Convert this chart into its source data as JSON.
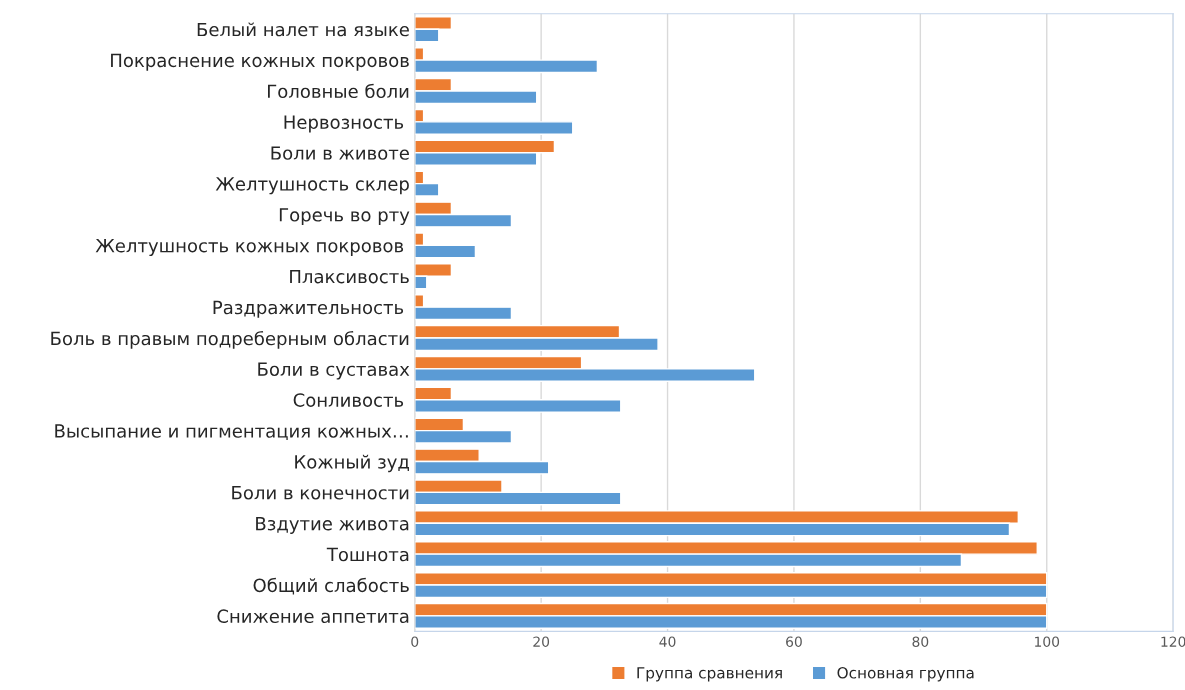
{
  "chart_data": {
    "type": "bar",
    "orientation": "horizontal",
    "categories": [
      "Белый налет на языке",
      "Покраснение кожных покровов",
      "Головные боли",
      "Нервозность ",
      "Боли в животе",
      "Желтушность склер",
      "Горечь во рту",
      "Желтушность кожных покровов ",
      "Плаксивость",
      "Раздражительность ",
      "Боль в правым подреберным области",
      "Боли в суставах",
      "Сонливость ",
      "Высыпание и пигментация кожных…",
      "Кожный зуд",
      "Боли в конечности",
      "Вздутие живота",
      "Тошнота",
      "Общий слабость",
      "Снижение аппетита"
    ],
    "series": [
      {
        "name": "Группа сравнения",
        "color": "#ed7d31",
        "values": [
          5.8,
          1.4,
          5.8,
          1.4,
          22.1,
          1.4,
          5.8,
          1.4,
          5.8,
          1.4,
          32.4,
          26.4,
          5.8,
          7.7,
          10.2,
          13.8,
          95.5,
          98.5,
          100,
          100
        ]
      },
      {
        "name": "Основная группа",
        "color": "#5b9bd5",
        "values": [
          3.8,
          28.9,
          19.3,
          25,
          19.3,
          3.8,
          15.3,
          9.6,
          1.9,
          15.3,
          38.5,
          53.8,
          32.6,
          15.3,
          21.2,
          32.6,
          94.1,
          86.5,
          100,
          100
        ]
      }
    ],
    "xlim": [
      0,
      120
    ],
    "xticks": [
      0,
      20,
      40,
      60,
      80,
      100,
      120
    ],
    "grid": "x",
    "legend": "bottom"
  }
}
